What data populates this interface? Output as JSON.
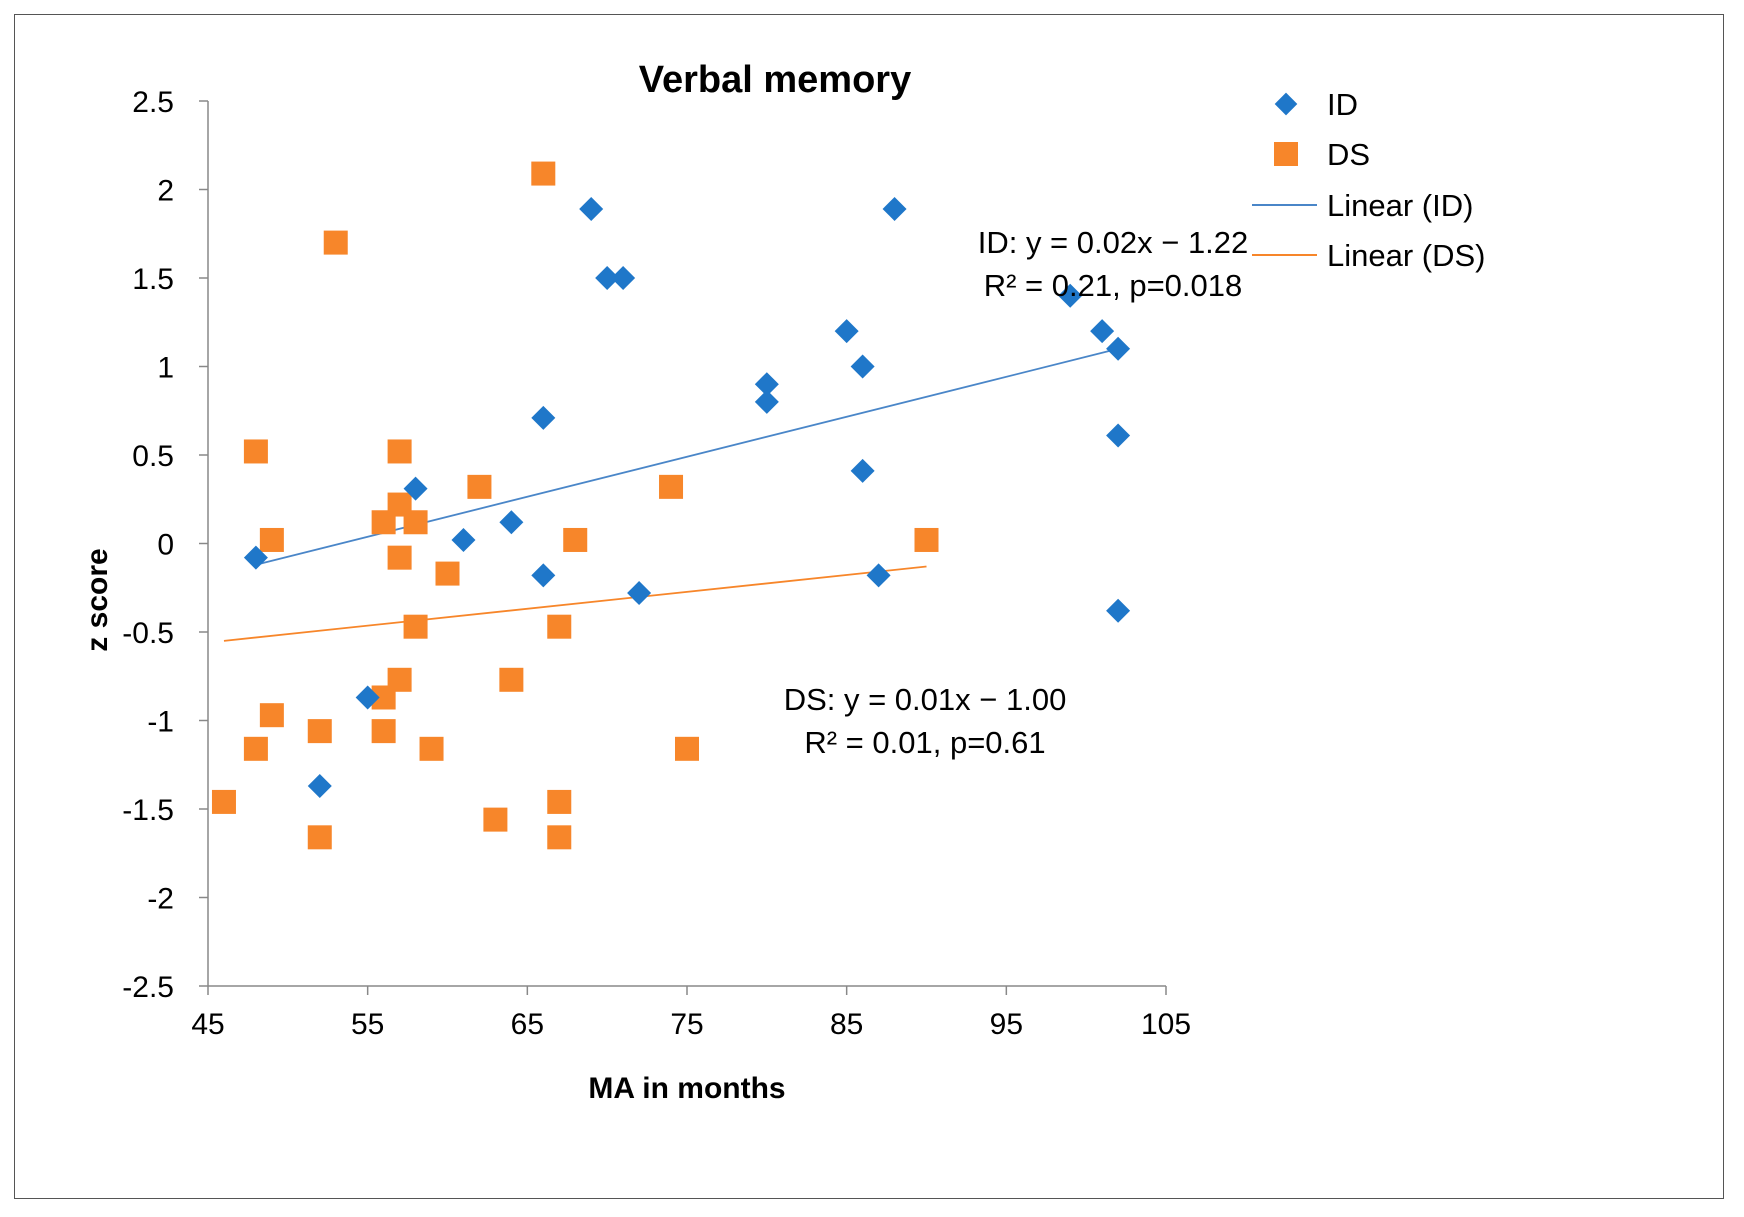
{
  "chart_data": {
    "type": "scatter",
    "title": "Verbal memory",
    "xlabel": "MA in months",
    "ylabel": "z score",
    "xlim": [
      45,
      105
    ],
    "ylim": [
      -2.5,
      2.5
    ],
    "xticks": [
      45,
      55,
      65,
      75,
      85,
      95,
      105
    ],
    "yticks": [
      2.5,
      2,
      1.5,
      1,
      0.5,
      0,
      -0.5,
      -1,
      -1.5,
      -2,
      -2.5
    ],
    "xtick_labels": [
      "45",
      "55",
      "65",
      "75",
      "85",
      "95",
      "105"
    ],
    "ytick_labels": [
      "2.5",
      "2",
      "1.5",
      "1",
      "0.5",
      "0",
      "-0.5",
      "-1",
      "-1.5",
      "-2",
      "-2.5"
    ],
    "legend_position": "top-right outside",
    "series": [
      {
        "name": "ID",
        "marker": "diamond",
        "color": "#1F77C9",
        "points": [
          [
            48,
            -0.08
          ],
          [
            52,
            -1.37
          ],
          [
            55,
            -0.87
          ],
          [
            58,
            0.31
          ],
          [
            61,
            0.02
          ],
          [
            64,
            0.12
          ],
          [
            66,
            0.71
          ],
          [
            66,
            -0.18
          ],
          [
            69,
            1.89
          ],
          [
            70,
            1.5
          ],
          [
            71,
            1.5
          ],
          [
            72,
            -0.28
          ],
          [
            80,
            0.9
          ],
          [
            80,
            0.8
          ],
          [
            85,
            1.2
          ],
          [
            86,
            1.0
          ],
          [
            86,
            0.41
          ],
          [
            87,
            -0.18
          ],
          [
            88,
            1.89
          ],
          [
            99,
            1.4
          ],
          [
            101,
            1.2
          ],
          [
            102,
            1.1
          ],
          [
            102,
            0.61
          ],
          [
            102,
            -0.38
          ]
        ]
      },
      {
        "name": "DS",
        "marker": "square",
        "color": "#F7862A",
        "points": [
          [
            46,
            -1.46
          ],
          [
            48,
            0.52
          ],
          [
            48,
            -1.16
          ],
          [
            49,
            0.02
          ],
          [
            49,
            -0.97
          ],
          [
            52,
            -1.06
          ],
          [
            52,
            -1.66
          ],
          [
            53,
            1.7
          ],
          [
            56,
            0.12
          ],
          [
            56,
            -0.87
          ],
          [
            56,
            -1.06
          ],
          [
            57,
            0.52
          ],
          [
            57,
            0.22
          ],
          [
            57,
            -0.08
          ],
          [
            57,
            -0.77
          ],
          [
            58,
            0.12
          ],
          [
            58,
            -0.47
          ],
          [
            59,
            -1.16
          ],
          [
            60,
            -0.17
          ],
          [
            62,
            0.32
          ],
          [
            63,
            -1.56
          ],
          [
            64,
            -0.77
          ],
          [
            66,
            2.09
          ],
          [
            67,
            -0.47
          ],
          [
            67,
            -1.46
          ],
          [
            67,
            -1.66
          ],
          [
            68,
            0.02
          ],
          [
            74,
            0.32
          ],
          [
            75,
            -1.16
          ],
          [
            90,
            0.02
          ]
        ]
      }
    ],
    "trendlines": [
      {
        "name": "Linear (ID)",
        "color": "#4A86C8",
        "x": [
          48,
          102
        ],
        "y": [
          -0.12,
          1.1
        ]
      },
      {
        "name": "Linear (DS)",
        "color": "#F7862A",
        "x": [
          46,
          90
        ],
        "y": [
          -0.55,
          -0.13
        ]
      }
    ],
    "legend": [
      "ID",
      "DS",
      "Linear (ID)",
      "Linear (DS)"
    ],
    "annotations": [
      {
        "name": "id-eq",
        "text": "ID: y = 0.02x − 1.22",
        "line2": "R² = 0.21, p=0.018"
      },
      {
        "name": "ds-eq",
        "text": "DS: y = 0.01x − 1.00",
        "line2": "R² = 0.01, p=0.61"
      }
    ]
  }
}
